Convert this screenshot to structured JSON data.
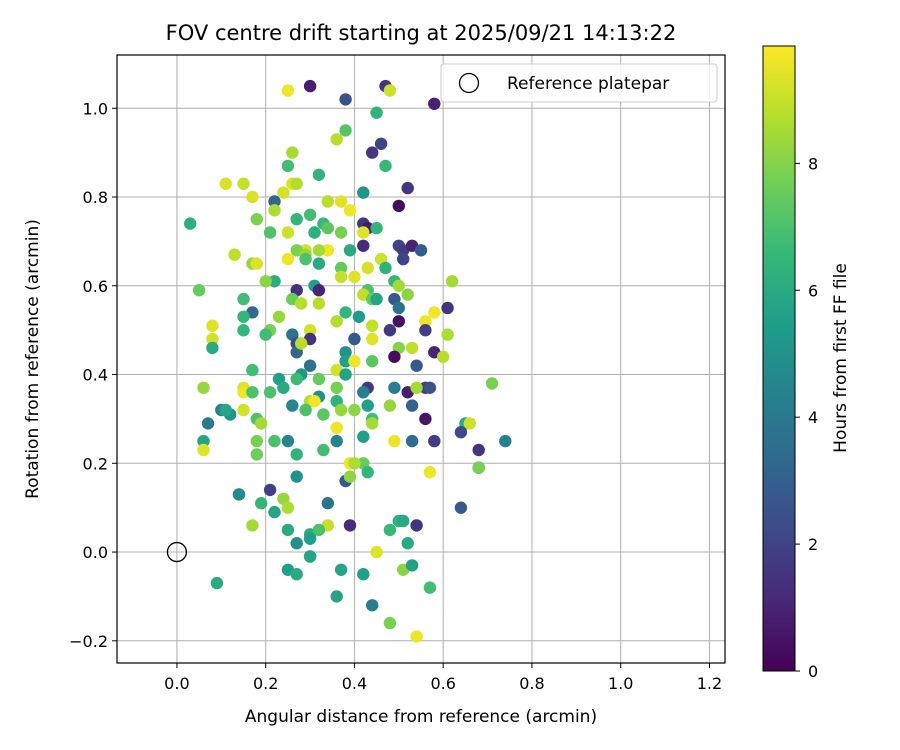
{
  "chart_data": {
    "type": "scatter",
    "title": "FOV centre drift starting at 2025/09/21 14:13:22",
    "xlabel": "Angular distance from reference (arcmin)",
    "ylabel": "Rotation from reference (arcmin)",
    "xlim": [
      -0.135,
      1.235
    ],
    "ylim": [
      -0.25,
      1.12
    ],
    "xticks": [
      0.0,
      0.2,
      0.4,
      0.6,
      0.8,
      1.0,
      1.2
    ],
    "xtick_labels": [
      "0.0",
      "0.2",
      "0.4",
      "0.6",
      "0.8",
      "1.0",
      "1.2"
    ],
    "yticks": [
      -0.2,
      0.0,
      0.2,
      0.4,
      0.6,
      0.8,
      1.0
    ],
    "ytick_labels": [
      "−0.2",
      "0.0",
      "0.2",
      "0.4",
      "0.6",
      "0.8",
      "1.0"
    ],
    "grid": true,
    "legend": {
      "position": "top-right",
      "entries": [
        "Reference platepar"
      ]
    },
    "reference_point": {
      "x": 0.0,
      "y": 0.0
    },
    "colorbar": {
      "label": "Hours from first FF file",
      "min": 0,
      "max": 9.85,
      "ticks": [
        0,
        2,
        4,
        6,
        8
      ],
      "tick_labels": [
        "0",
        "2",
        "4",
        "6",
        "8"
      ],
      "colormap": "viridis",
      "colors": [
        "#440154",
        "#482878",
        "#3e4989",
        "#31688e",
        "#26828e",
        "#1f9e89",
        "#35b779",
        "#6ece58",
        "#b5de2b",
        "#fde725"
      ]
    },
    "points": [
      [
        0.25,
        1.04,
        9.6
      ],
      [
        0.3,
        1.05,
        0.8
      ],
      [
        0.38,
        1.02,
        2.5
      ],
      [
        0.47,
        1.05,
        1.5
      ],
      [
        0.48,
        1.04,
        9.1
      ],
      [
        0.58,
        1.01,
        0.9
      ],
      [
        0.45,
        0.99,
        6.4
      ],
      [
        0.36,
        0.93,
        8.8
      ],
      [
        0.38,
        0.95,
        7.2
      ],
      [
        0.44,
        0.9,
        1.6
      ],
      [
        0.46,
        0.92,
        2.0
      ],
      [
        0.26,
        0.9,
        8.5
      ],
      [
        0.25,
        0.87,
        6.8
      ],
      [
        0.47,
        0.87,
        6.6
      ],
      [
        0.32,
        0.85,
        6.4
      ],
      [
        0.11,
        0.83,
        9.3
      ],
      [
        0.15,
        0.83,
        9.0
      ],
      [
        0.26,
        0.83,
        9.3
      ],
      [
        0.27,
        0.83,
        8.7
      ],
      [
        0.24,
        0.81,
        9.2
      ],
      [
        0.42,
        0.81,
        5.1
      ],
      [
        0.52,
        0.82,
        1.6
      ],
      [
        0.17,
        0.8,
        9.3
      ],
      [
        0.22,
        0.79,
        3.2
      ],
      [
        0.34,
        0.79,
        8.8
      ],
      [
        0.37,
        0.79,
        9.4
      ],
      [
        0.5,
        0.78,
        0.3
      ],
      [
        0.22,
        0.77,
        8.6
      ],
      [
        0.39,
        0.77,
        9.6
      ],
      [
        0.3,
        0.76,
        6.8
      ],
      [
        0.27,
        0.75,
        6.5
      ],
      [
        0.18,
        0.75,
        7.9
      ],
      [
        0.42,
        0.74,
        1.6
      ],
      [
        0.43,
        0.73,
        0.6
      ],
      [
        0.33,
        0.74,
        6.6
      ],
      [
        0.34,
        0.73,
        7.3
      ],
      [
        0.45,
        0.73,
        6.4
      ],
      [
        0.42,
        0.72,
        9.4
      ],
      [
        0.03,
        0.74,
        6.2
      ],
      [
        0.21,
        0.72,
        7.1
      ],
      [
        0.25,
        0.72,
        9.1
      ],
      [
        0.31,
        0.72,
        6.2
      ],
      [
        0.37,
        0.72,
        7.8
      ],
      [
        0.5,
        0.69,
        2.0
      ],
      [
        0.51,
        0.68,
        1.8
      ],
      [
        0.53,
        0.69,
        0.9
      ],
      [
        0.55,
        0.68,
        2.8
      ],
      [
        0.42,
        0.69,
        1.2
      ],
      [
        0.29,
        0.68,
        9.2
      ],
      [
        0.27,
        0.68,
        7.9
      ],
      [
        0.29,
        0.67,
        8.3
      ],
      [
        0.34,
        0.68,
        9.6
      ],
      [
        0.39,
        0.68,
        6.0
      ],
      [
        0.32,
        0.68,
        8.5
      ],
      [
        0.13,
        0.67,
        8.9
      ],
      [
        0.46,
        0.66,
        9.1
      ],
      [
        0.51,
        0.66,
        2.1
      ],
      [
        0.17,
        0.65,
        8.3
      ],
      [
        0.18,
        0.65,
        9.4
      ],
      [
        0.25,
        0.66,
        9.6
      ],
      [
        0.29,
        0.66,
        7.0
      ],
      [
        0.32,
        0.65,
        6.0
      ],
      [
        0.37,
        0.64,
        7.5
      ],
      [
        0.43,
        0.64,
        9.3
      ],
      [
        0.47,
        0.64,
        6.3
      ],
      [
        0.37,
        0.62,
        9.0
      ],
      [
        0.4,
        0.62,
        9.4
      ],
      [
        0.22,
        0.61,
        6.1
      ],
      [
        0.2,
        0.61,
        8.1
      ],
      [
        0.49,
        0.61,
        6.5
      ],
      [
        0.62,
        0.61,
        8.5
      ],
      [
        0.27,
        0.59,
        1.4
      ],
      [
        0.31,
        0.6,
        5.5
      ],
      [
        0.32,
        0.59,
        1.0
      ],
      [
        0.43,
        0.59,
        7.0
      ],
      [
        0.05,
        0.59,
        7.5
      ],
      [
        0.15,
        0.57,
        6.8
      ],
      [
        0.26,
        0.57,
        7.6
      ],
      [
        0.42,
        0.58,
        8.9
      ],
      [
        0.44,
        0.57,
        7.4
      ],
      [
        0.45,
        0.57,
        5.8
      ],
      [
        0.5,
        0.6,
        8.5
      ],
      [
        0.52,
        0.58,
        8.1
      ],
      [
        0.49,
        0.57,
        2.8
      ],
      [
        0.5,
        0.55,
        3.8
      ],
      [
        0.28,
        0.56,
        8.8
      ],
      [
        0.32,
        0.56,
        8.8
      ],
      [
        0.61,
        0.55,
        1.5
      ],
      [
        0.38,
        0.54,
        6.5
      ],
      [
        0.17,
        0.54,
        3.4
      ],
      [
        0.15,
        0.53,
        6.5
      ],
      [
        0.23,
        0.53,
        8.3
      ],
      [
        0.36,
        0.52,
        8.7
      ],
      [
        0.41,
        0.53,
        5.3
      ],
      [
        0.44,
        0.51,
        9.0
      ],
      [
        0.5,
        0.52,
        0.5
      ],
      [
        0.56,
        0.52,
        9.6
      ],
      [
        0.58,
        0.54,
        9.7
      ],
      [
        0.08,
        0.51,
        9.4
      ],
      [
        0.21,
        0.5,
        7.8
      ],
      [
        0.15,
        0.5,
        6.5
      ],
      [
        0.26,
        0.49,
        3.8
      ],
      [
        0.3,
        0.5,
        9.2
      ],
      [
        0.3,
        0.48,
        1.4
      ],
      [
        0.27,
        0.47,
        2.2
      ],
      [
        0.27,
        0.45,
        3.2
      ],
      [
        0.28,
        0.47,
        8.8
      ],
      [
        0.44,
        0.48,
        9.4
      ],
      [
        0.48,
        0.5,
        1.7
      ],
      [
        0.56,
        0.5,
        1.8
      ],
      [
        0.61,
        0.49,
        8.6
      ],
      [
        0.4,
        0.48,
        2.8
      ],
      [
        0.08,
        0.48,
        9.2
      ],
      [
        0.2,
        0.49,
        6.8
      ],
      [
        0.08,
        0.46,
        5.9
      ],
      [
        0.38,
        0.45,
        5.0
      ],
      [
        0.38,
        0.43,
        5.5
      ],
      [
        0.44,
        0.43,
        7.3
      ],
      [
        0.5,
        0.46,
        8.0
      ],
      [
        0.53,
        0.46,
        8.9
      ],
      [
        0.58,
        0.45,
        1.0
      ],
      [
        0.49,
        0.44,
        0.3
      ],
      [
        0.4,
        0.43,
        9.6
      ],
      [
        0.3,
        0.42,
        3.8
      ],
      [
        0.6,
        0.44,
        8.8
      ],
      [
        0.36,
        0.41,
        9.2
      ],
      [
        0.17,
        0.41,
        6.8
      ],
      [
        0.23,
        0.39,
        5.5
      ],
      [
        0.28,
        0.4,
        5.2
      ],
      [
        0.27,
        0.39,
        6.7
      ],
      [
        0.32,
        0.39,
        7.5
      ],
      [
        0.38,
        0.4,
        5.7
      ],
      [
        0.43,
        0.37,
        1.7
      ],
      [
        0.54,
        0.42,
        2.8
      ],
      [
        0.56,
        0.37,
        1.8
      ],
      [
        0.57,
        0.37,
        2.5
      ],
      [
        0.06,
        0.37,
        8.3
      ],
      [
        0.71,
        0.38,
        7.8
      ],
      [
        0.15,
        0.37,
        9.4
      ],
      [
        0.15,
        0.36,
        9.6
      ],
      [
        0.17,
        0.36,
        7.0
      ],
      [
        0.21,
        0.36,
        7.0
      ],
      [
        0.24,
        0.37,
        6.0
      ],
      [
        0.36,
        0.37,
        7.8
      ],
      [
        0.42,
        0.36,
        4.2
      ],
      [
        0.49,
        0.37,
        4.2
      ],
      [
        0.52,
        0.36,
        0.8
      ],
      [
        0.54,
        0.37,
        8.5
      ],
      [
        0.32,
        0.35,
        5.0
      ],
      [
        0.3,
        0.34,
        8.8
      ],
      [
        0.31,
        0.34,
        9.7
      ],
      [
        0.36,
        0.34,
        6.3
      ],
      [
        0.43,
        0.33,
        5.5
      ],
      [
        0.37,
        0.32,
        8.3
      ],
      [
        0.4,
        0.32,
        8.1
      ],
      [
        0.48,
        0.33,
        8.3
      ],
      [
        0.53,
        0.33,
        3.1
      ],
      [
        0.15,
        0.32,
        9.2
      ],
      [
        0.1,
        0.32,
        4.5
      ],
      [
        0.12,
        0.31,
        5.2
      ],
      [
        0.18,
        0.3,
        7.1
      ],
      [
        0.11,
        0.32,
        5.8
      ],
      [
        0.07,
        0.29,
        4.0
      ],
      [
        0.26,
        0.33,
        4.5
      ],
      [
        0.29,
        0.32,
        7.0
      ],
      [
        0.33,
        0.31,
        7.3
      ],
      [
        0.36,
        0.28,
        9.6
      ],
      [
        0.44,
        0.3,
        6.8
      ],
      [
        0.44,
        0.29,
        8.5
      ],
      [
        0.56,
        0.3,
        0.6
      ],
      [
        0.65,
        0.29,
        6.0
      ],
      [
        0.66,
        0.29,
        9.1
      ],
      [
        0.19,
        0.29,
        8.5
      ],
      [
        0.36,
        0.25,
        4.5
      ],
      [
        0.42,
        0.26,
        5.5
      ],
      [
        0.64,
        0.27,
        2.2
      ],
      [
        0.68,
        0.23,
        1.5
      ],
      [
        0.74,
        0.25,
        4.3
      ],
      [
        0.58,
        0.25,
        1.8
      ],
      [
        0.06,
        0.25,
        5.8
      ],
      [
        0.18,
        0.25,
        7.8
      ],
      [
        0.22,
        0.25,
        7.0
      ],
      [
        0.25,
        0.25,
        4.5
      ],
      [
        0.33,
        0.23,
        6.8
      ],
      [
        0.49,
        0.25,
        9.6
      ],
      [
        0.53,
        0.25,
        3.5
      ],
      [
        0.06,
        0.23,
        9.4
      ],
      [
        0.18,
        0.22,
        7.6
      ],
      [
        0.27,
        0.22,
        6.3
      ],
      [
        0.39,
        0.2,
        9.6
      ],
      [
        0.42,
        0.2,
        7.5
      ],
      [
        0.43,
        0.18,
        6.5
      ],
      [
        0.38,
        0.16,
        2.8
      ],
      [
        0.39,
        0.17,
        8.2
      ],
      [
        0.4,
        0.2,
        8.6
      ],
      [
        0.57,
        0.18,
        9.6
      ],
      [
        0.68,
        0.19,
        1.0
      ],
      [
        0.68,
        0.19,
        7.8
      ],
      [
        0.27,
        0.17,
        5.0
      ],
      [
        0.21,
        0.14,
        1.9
      ],
      [
        0.14,
        0.13,
        5.2
      ],
      [
        0.14,
        0.13,
        4.8
      ],
      [
        0.19,
        0.11,
        6.5
      ],
      [
        0.24,
        0.12,
        8.3
      ],
      [
        0.34,
        0.11,
        3.8
      ],
      [
        0.22,
        0.09,
        5.8
      ],
      [
        0.25,
        0.1,
        8.6
      ],
      [
        0.64,
        0.1,
        2.8
      ],
      [
        0.17,
        0.06,
        8.5
      ],
      [
        0.25,
        0.05,
        6.0
      ],
      [
        0.3,
        0.04,
        6.0
      ],
      [
        0.34,
        0.06,
        9.0
      ],
      [
        0.39,
        0.06,
        1.2
      ],
      [
        0.48,
        0.05,
        6.6
      ],
      [
        0.5,
        0.07,
        6.3
      ],
      [
        0.51,
        0.07,
        5.9
      ],
      [
        0.54,
        0.06,
        1.5
      ],
      [
        0.27,
        0.02,
        5.0
      ],
      [
        0.3,
        0.03,
        5.5
      ],
      [
        0.32,
        0.05,
        7.0
      ],
      [
        0.52,
        0.02,
        6.0
      ],
      [
        0.45,
        0.0,
        9.4
      ],
      [
        0.3,
        -0.01,
        5.5
      ],
      [
        0.3,
        -0.01,
        5.8
      ],
      [
        0.25,
        -0.04,
        5.5
      ],
      [
        0.27,
        -0.05,
        6.0
      ],
      [
        0.37,
        -0.04,
        5.8
      ],
      [
        0.42,
        -0.05,
        5.5
      ],
      [
        0.51,
        -0.04,
        8.1
      ],
      [
        0.53,
        -0.03,
        5.5
      ],
      [
        0.09,
        -0.07,
        6.0
      ],
      [
        0.57,
        -0.08,
        6.8
      ],
      [
        0.36,
        -0.1,
        5.8
      ],
      [
        0.44,
        -0.12,
        4.2
      ],
      [
        0.48,
        -0.16,
        7.8
      ],
      [
        0.54,
        -0.19,
        9.6
      ]
    ]
  }
}
